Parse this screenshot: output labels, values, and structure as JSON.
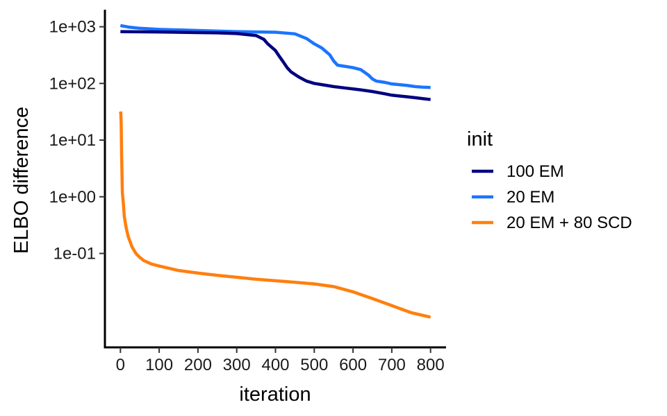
{
  "chart_data": {
    "type": "line",
    "xlabel": "iteration",
    "ylabel": "ELBO difference",
    "x_ticks": [
      0,
      100,
      200,
      300,
      400,
      500,
      600,
      700,
      800
    ],
    "x_tick_labels": [
      "0",
      "100",
      "200",
      "300",
      "400",
      "500",
      "600",
      "700",
      "800"
    ],
    "y_scale": "log",
    "y_ticks": [
      1000,
      100,
      10,
      1,
      0.1
    ],
    "y_tick_labels": [
      "1e+03",
      "1e+02",
      "1e+01",
      "1e+00",
      "1e-01"
    ],
    "xlim": [
      -40,
      840
    ],
    "ylim": [
      0.0022,
      2000
    ],
    "grid": false,
    "legend": {
      "title": "init",
      "position": "right"
    },
    "series": [
      {
        "name": "100 EM",
        "color": "#000080",
        "x": [
          0,
          100,
          200,
          250,
          300,
          350,
          370,
          380,
          400,
          410,
          420,
          430,
          440,
          460,
          480,
          500,
          520,
          550,
          580,
          600,
          620,
          650,
          680,
          700,
          720,
          740,
          760,
          780,
          800
        ],
        "y": [
          820,
          810,
          790,
          780,
          760,
          700,
          600,
          500,
          380,
          300,
          240,
          190,
          160,
          130,
          110,
          100,
          95,
          88,
          83,
          80,
          77,
          72,
          66,
          62,
          60,
          58,
          56,
          54,
          52
        ]
      },
      {
        "name": "20 EM",
        "color": "#1a75ff",
        "x": [
          0,
          20,
          50,
          100,
          200,
          300,
          400,
          450,
          480,
          500,
          520,
          540,
          550,
          560,
          580,
          600,
          620,
          640,
          650,
          660,
          680,
          700,
          720,
          740,
          760,
          780,
          800
        ],
        "y": [
          1050,
          990,
          940,
          900,
          860,
          820,
          800,
          750,
          620,
          500,
          420,
          320,
          250,
          210,
          200,
          190,
          175,
          140,
          120,
          110,
          105,
          98,
          95,
          92,
          88,
          86,
          85
        ]
      },
      {
        "name": "20 EM + 80 SCD",
        "color": "#ff7f0e",
        "x": [
          0,
          1,
          2,
          3,
          5,
          8,
          10,
          15,
          20,
          30,
          40,
          50,
          60,
          80,
          100,
          150,
          200,
          250,
          300,
          350,
          400,
          450,
          500,
          550,
          600,
          650,
          700,
          750,
          800
        ],
        "y": [
          32,
          30,
          20,
          6,
          1.2,
          0.7,
          0.45,
          0.28,
          0.2,
          0.13,
          0.1,
          0.085,
          0.075,
          0.065,
          0.06,
          0.05,
          0.045,
          0.041,
          0.038,
          0.035,
          0.033,
          0.031,
          0.029,
          0.026,
          0.021,
          0.016,
          0.012,
          0.009,
          0.0075
        ]
      }
    ]
  }
}
